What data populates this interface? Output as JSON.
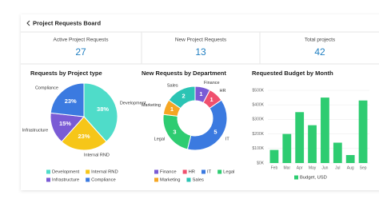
{
  "header": {
    "title": "Project Requests Board"
  },
  "kpis": [
    {
      "label": "Active Project Requests",
      "value": 27
    },
    {
      "label": "New Project Requests",
      "value": 13
    },
    {
      "label": "Total projects",
      "value": 42
    }
  ],
  "chart_data": [
    {
      "type": "pie",
      "title": "Requests by Project type",
      "categories": [
        "Development",
        "Internal RND",
        "Infrastructure",
        "Compliance"
      ],
      "values": [
        38,
        23,
        15,
        23
      ],
      "value_labels": [
        "38%",
        "23%",
        "15%",
        "23%"
      ],
      "colors": [
        "#4fdcc9",
        "#f6c619",
        "#7a5bd5",
        "#3b7ae0"
      ]
    },
    {
      "type": "donut",
      "title": "New Requests by Department",
      "categories": [
        "Finance",
        "HR",
        "IT",
        "Legal",
        "Marketing",
        "Sales"
      ],
      "values": [
        1,
        1,
        5,
        3,
        1,
        2
      ],
      "colors": [
        "#7a5bd5",
        "#f0506e",
        "#3b7ae0",
        "#2ecc71",
        "#f5a623",
        "#2bc4b4"
      ]
    },
    {
      "type": "bar",
      "title": "Requested Budget by Month",
      "categories": [
        "Feb",
        "Mar",
        "Apr",
        "May",
        "Jun",
        "Jul",
        "Aug",
        "Sep"
      ],
      "series": [
        {
          "name": "Budget, USD",
          "color": "#2ecc71",
          "values": [
            90000,
            200000,
            350000,
            260000,
            450000,
            140000,
            55000,
            430000
          ]
        }
      ],
      "ylim": [
        0,
        500000
      ],
      "yticks": [
        {
          "value": 0,
          "label": "$0K"
        },
        {
          "value": 100000,
          "label": "$100K"
        },
        {
          "value": 200000,
          "label": "$200K"
        },
        {
          "value": 300000,
          "label": "$300K"
        },
        {
          "value": 400000,
          "label": "$400K"
        },
        {
          "value": 500000,
          "label": "$500K"
        }
      ],
      "grid": true
    }
  ]
}
